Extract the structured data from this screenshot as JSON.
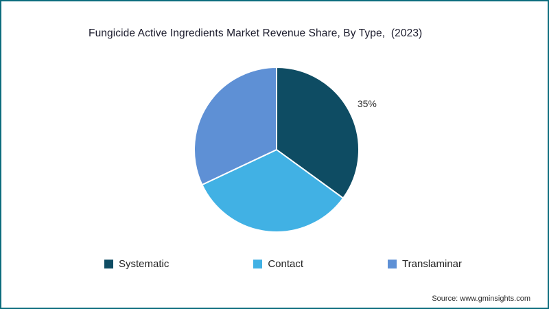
{
  "title": "Fungicide Active Ingredients Market Revenue Share, By Type,  (2023)",
  "source": "Source: www.gminsights.com",
  "colors": {
    "frame_border": "#0d6d7d",
    "systematic": "#0e4c63",
    "contact": "#41b1e4",
    "translaminar": "#5e90d5"
  },
  "chart_data": {
    "type": "pie",
    "title": "Fungicide Active Ingredients Market Revenue Share, By Type, (2023)",
    "categories": [
      "Systematic",
      "Contact",
      "Translaminar"
    ],
    "values": [
      35,
      33,
      32
    ],
    "unit": "%",
    "colors": [
      "#0e4c63",
      "#41b1e4",
      "#5e90d5"
    ],
    "slice_labels": [
      "35%",
      "",
      ""
    ],
    "start_angle_deg": 0,
    "direction": "clockwise",
    "legend_position": "bottom",
    "slice_stroke": "#ffffff"
  },
  "legend": [
    {
      "label": "Systematic",
      "color": "#0e4c63"
    },
    {
      "label": "Contact",
      "color": "#41b1e4"
    },
    {
      "label": "Translaminar",
      "color": "#5e90d5"
    }
  ]
}
